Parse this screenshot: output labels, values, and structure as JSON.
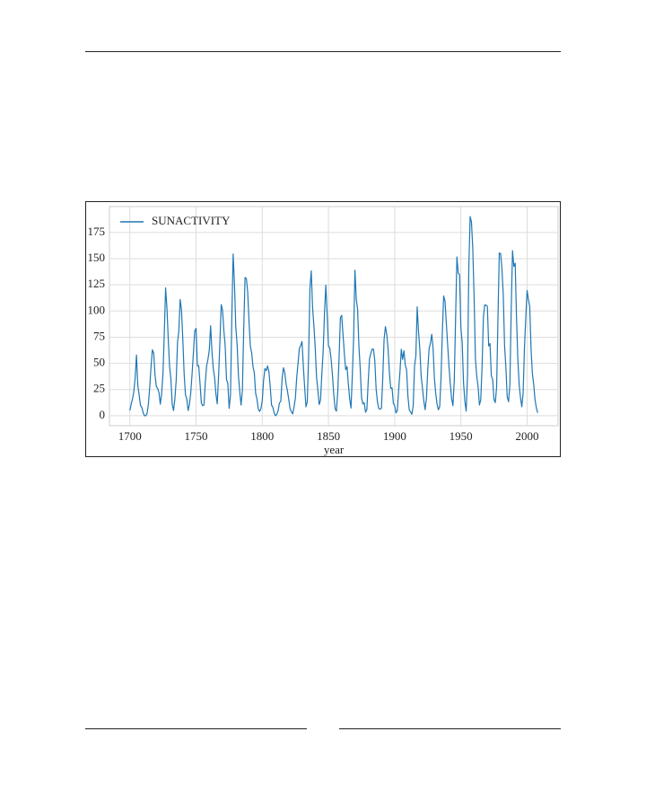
{
  "chart_data": {
    "type": "line",
    "xlabel": "year",
    "legend": "upper left",
    "grid": true,
    "xlim": [
      1684.6,
      2023.4
    ],
    "xticks": [
      1700,
      1750,
      1800,
      1850,
      1900,
      1950,
      2000
    ],
    "ylim": [
      -9.51,
      199.71
    ],
    "yticks": [
      0,
      25,
      50,
      75,
      100,
      125,
      150,
      175
    ],
    "x": [
      1700,
      1701,
      1702,
      1703,
      1704,
      1705,
      1706,
      1707,
      1708,
      1709,
      1710,
      1711,
      1712,
      1713,
      1714,
      1715,
      1716,
      1717,
      1718,
      1719,
      1720,
      1721,
      1722,
      1723,
      1724,
      1725,
      1726,
      1727,
      1728,
      1729,
      1730,
      1731,
      1732,
      1733,
      1734,
      1735,
      1736,
      1737,
      1738,
      1739,
      1740,
      1741,
      1742,
      1743,
      1744,
      1745,
      1746,
      1747,
      1748,
      1749,
      1750,
      1751,
      1752,
      1753,
      1754,
      1755,
      1756,
      1757,
      1758,
      1759,
      1760,
      1761,
      1762,
      1763,
      1764,
      1765,
      1766,
      1767,
      1768,
      1769,
      1770,
      1771,
      1772,
      1773,
      1774,
      1775,
      1776,
      1777,
      1778,
      1779,
      1780,
      1781,
      1782,
      1783,
      1784,
      1785,
      1786,
      1787,
      1788,
      1789,
      1790,
      1791,
      1792,
      1793,
      1794,
      1795,
      1796,
      1797,
      1798,
      1799,
      1800,
      1801,
      1802,
      1803,
      1804,
      1805,
      1806,
      1807,
      1808,
      1809,
      1810,
      1811,
      1812,
      1813,
      1814,
      1815,
      1816,
      1817,
      1818,
      1819,
      1820,
      1821,
      1822,
      1823,
      1824,
      1825,
      1826,
      1827,
      1828,
      1829,
      1830,
      1831,
      1832,
      1833,
      1834,
      1835,
      1836,
      1837,
      1838,
      1839,
      1840,
      1841,
      1842,
      1843,
      1844,
      1845,
      1846,
      1847,
      1848,
      1849,
      1850,
      1851,
      1852,
      1853,
      1854,
      1855,
      1856,
      1857,
      1858,
      1859,
      1860,
      1861,
      1862,
      1863,
      1864,
      1865,
      1866,
      1867,
      1868,
      1869,
      1870,
      1871,
      1872,
      1873,
      1874,
      1875,
      1876,
      1877,
      1878,
      1879,
      1880,
      1881,
      1882,
      1883,
      1884,
      1885,
      1886,
      1887,
      1888,
      1889,
      1890,
      1891,
      1892,
      1893,
      1894,
      1895,
      1896,
      1897,
      1898,
      1899,
      1900,
      1901,
      1902,
      1903,
      1904,
      1905,
      1906,
      1907,
      1908,
      1909,
      1910,
      1911,
      1912,
      1913,
      1914,
      1915,
      1916,
      1917,
      1918,
      1919,
      1920,
      1921,
      1922,
      1923,
      1924,
      1925,
      1926,
      1927,
      1928,
      1929,
      1930,
      1931,
      1932,
      1933,
      1934,
      1935,
      1936,
      1937,
      1938,
      1939,
      1940,
      1941,
      1942,
      1943,
      1944,
      1945,
      1946,
      1947,
      1948,
      1949,
      1950,
      1951,
      1952,
      1953,
      1954,
      1955,
      1956,
      1957,
      1958,
      1959,
      1960,
      1961,
      1962,
      1963,
      1964,
      1965,
      1966,
      1967,
      1968,
      1969,
      1970,
      1971,
      1972,
      1973,
      1974,
      1975,
      1976,
      1977,
      1978,
      1979,
      1980,
      1981,
      1982,
      1983,
      1984,
      1985,
      1986,
      1987,
      1988,
      1989,
      1990,
      1991,
      1992,
      1993,
      1994,
      1995,
      1996,
      1997,
      1998,
      1999,
      2000,
      2001,
      2002,
      2003,
      2004,
      2005,
      2006,
      2007,
      2008
    ],
    "series": [
      {
        "name": "SUNACTIVITY",
        "color": "#1f77b4",
        "values": [
          5,
          11,
          16,
          23,
          36,
          58,
          29,
          20,
          10,
          8,
          3,
          0,
          0,
          2,
          11,
          27,
          47,
          63,
          60,
          39,
          28,
          26,
          22,
          11,
          21,
          40,
          78,
          122,
          103,
          73,
          47,
          35,
          11,
          5,
          16,
          34,
          70,
          81,
          111,
          101,
          73,
          40,
          20,
          16,
          5,
          11,
          22,
          40,
          60,
          80.9,
          83.4,
          47.7,
          47.8,
          30.7,
          12.2,
          9.6,
          10.2,
          32.4,
          47.6,
          54,
          62.9,
          85.9,
          61.2,
          45.1,
          36.4,
          20.9,
          11.4,
          37.8,
          69.8,
          106.1,
          100.8,
          81.6,
          66.5,
          34.8,
          30.6,
          7,
          19.8,
          92.5,
          154.4,
          125.9,
          84.8,
          68.1,
          38.5,
          22.8,
          10.2,
          24.1,
          82.9,
          132,
          130.9,
          118.1,
          89.9,
          66.6,
          60,
          46.9,
          41,
          21.3,
          16,
          6.4,
          4.1,
          6.8,
          14.5,
          34,
          45,
          43.1,
          47.5,
          42.2,
          28.1,
          10.1,
          8.1,
          2.5,
          0,
          1.4,
          5,
          12.2,
          13.9,
          35.4,
          45.8,
          41.1,
          30.1,
          23.9,
          15.6,
          6.6,
          4,
          1.8,
          8.5,
          16.6,
          36.3,
          49.6,
          64.2,
          67,
          70.9,
          47.8,
          27.5,
          8.5,
          13.2,
          56.9,
          121.5,
          138.3,
          103.2,
          85.7,
          64.6,
          36.7,
          24.2,
          10.7,
          15,
          40.1,
          61.5,
          98.5,
          124.7,
          96.3,
          66.6,
          64.5,
          54.1,
          39,
          20.6,
          6.7,
          4.3,
          22.7,
          54.8,
          93.8,
          95.8,
          77.2,
          59.1,
          44,
          47,
          30.5,
          16.3,
          7.3,
          37.6,
          74,
          139,
          111.2,
          101.6,
          66.2,
          44.7,
          17,
          11.3,
          12.4,
          3.4,
          6,
          32.3,
          54.3,
          59.7,
          63.7,
          63.5,
          52.2,
          25.4,
          13.1,
          6.8,
          6.3,
          7.1,
          35.6,
          73,
          85.1,
          78,
          64,
          41.8,
          26.2,
          26.7,
          12.1,
          9.5,
          2.7,
          5,
          24.4,
          42,
          63.5,
          53.8,
          62,
          48.5,
          43.9,
          18.6,
          5.7,
          3.6,
          1.4,
          9.6,
          47.4,
          57.1,
          103.9,
          80.6,
          63.6,
          37.6,
          26.1,
          14.2,
          5.8,
          16.7,
          44.3,
          63.9,
          69,
          77.8,
          64.9,
          35.7,
          21.2,
          11.1,
          5.7,
          8.7,
          36.1,
          79.7,
          114.4,
          109.6,
          88.8,
          67.8,
          47.5,
          30.6,
          16.3,
          9.6,
          33.2,
          92.6,
          151.6,
          136.3,
          134.7,
          83.9,
          69.4,
          31.5,
          13.9,
          4.4,
          38,
          141.7,
          190.2,
          184.8,
          159,
          112.3,
          53.9,
          37.5,
          27.9,
          10.2,
          15.1,
          47,
          93.8,
          105.9,
          105.5,
          104.5,
          66.6,
          68.9,
          38,
          34.5,
          15.5,
          12.6,
          27.5,
          92.5,
          155.4,
          154.6,
          140.4,
          115.9,
          66.6,
          45.9,
          17.9,
          13.4,
          29.2,
          100.2,
          157.6,
          142.6,
          145.7,
          94.3,
          54.6,
          29.9,
          17.5,
          8.6,
          21.5,
          64.3,
          93.3,
          119.6,
          111,
          104,
          63.7,
          40.4,
          29.8,
          15.2,
          7.5,
          2.9
        ]
      }
    ]
  }
}
